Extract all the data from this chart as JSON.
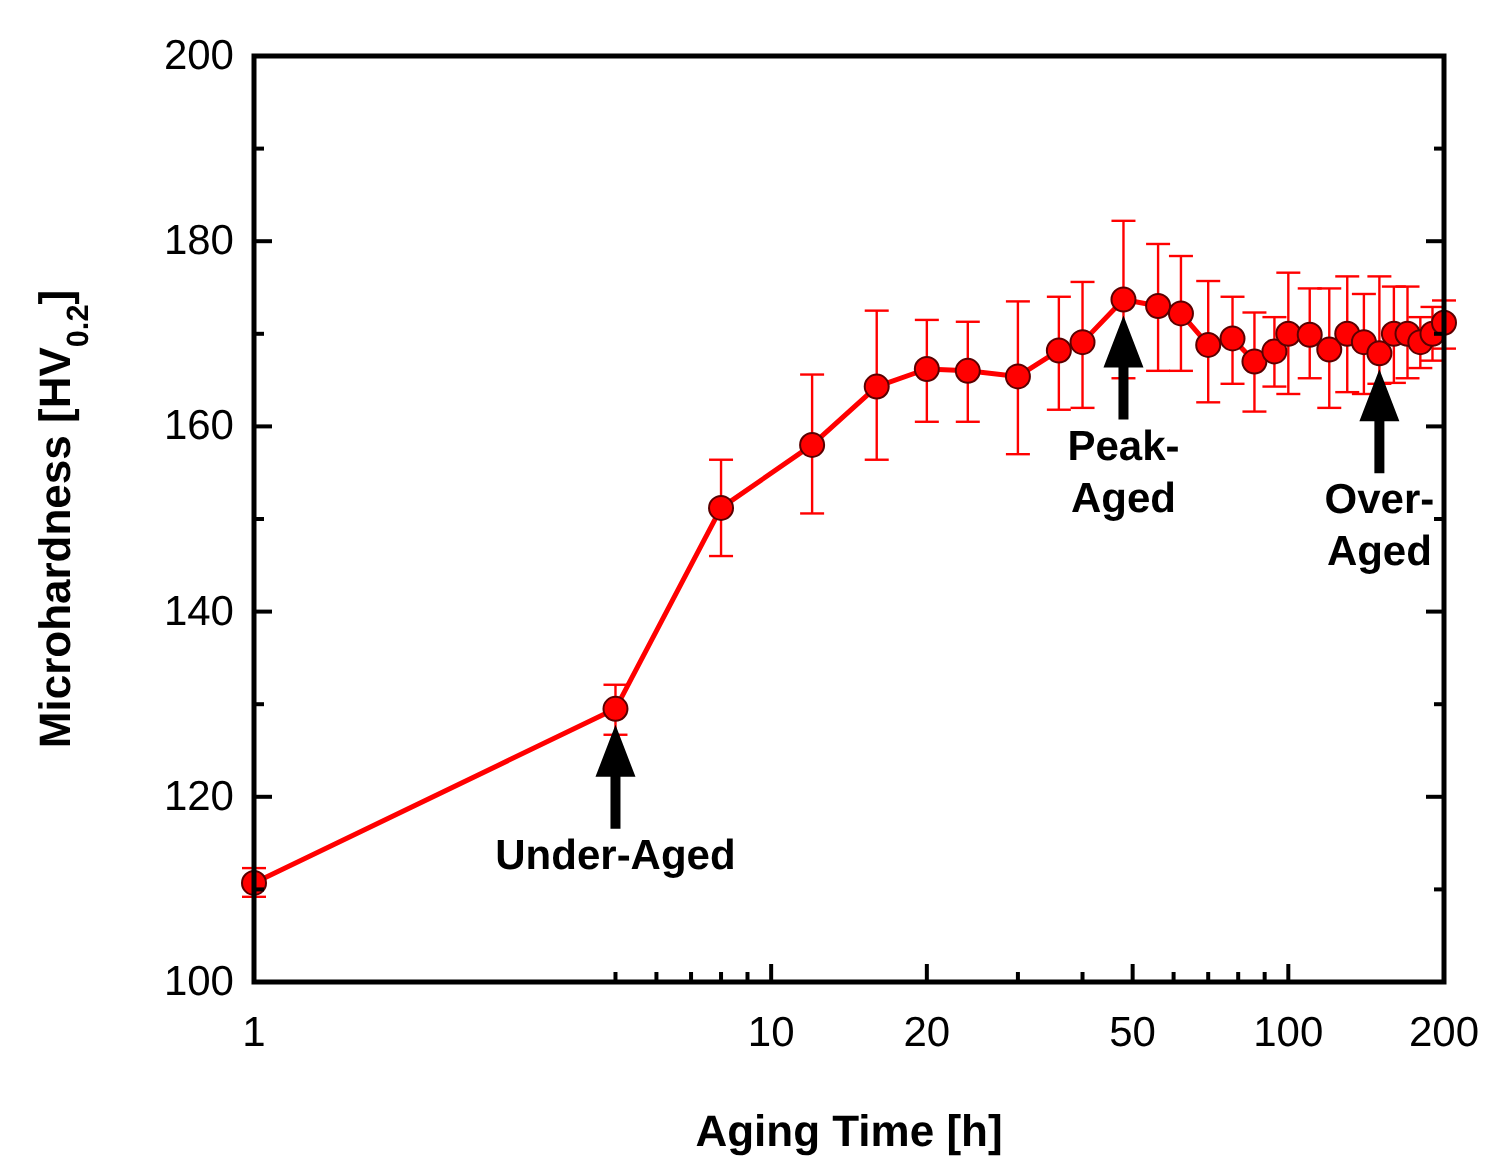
{
  "chart_data": {
    "type": "line",
    "xlabel": "Aging Time [h]",
    "ylabel": "Microhardness [HV$_{0.2}$]",
    "x": [
      1,
      5,
      8,
      12,
      16,
      20,
      24,
      30,
      36,
      40,
      48,
      56,
      62,
      70,
      78,
      86,
      94,
      100,
      110,
      120,
      130,
      140,
      150,
      160,
      170,
      180,
      190,
      200
    ],
    "series": [
      {
        "color": "#ff0000",
        "values": [
          110.7,
          129.5,
          151.2,
          158.0,
          164.3,
          166.2,
          166.0,
          165.4,
          168.2,
          169.1,
          173.7,
          173.0,
          172.2,
          168.8,
          169.5,
          167.0,
          168.1,
          170.0,
          169.9,
          168.3,
          170.0,
          169.1,
          167.9,
          170.0,
          170.0,
          169.1,
          170.0,
          171.2
        ],
        "errors": [
          [
            109.2,
            112.3
          ],
          [
            126.7,
            132.1
          ],
          [
            146,
            156.4
          ],
          [
            150.6,
            165.6
          ],
          [
            156.4,
            172.5
          ],
          [
            160.5,
            171.5
          ],
          [
            160.5,
            171.3
          ],
          [
            157.0,
            173.5
          ],
          [
            161.8,
            174.0
          ],
          [
            162.0,
            175.6
          ],
          [
            165.2,
            182.2
          ],
          [
            166,
            179.7
          ],
          [
            166,
            178.4
          ],
          [
            162.6,
            175.7
          ],
          [
            164.6,
            174
          ],
          [
            161.6,
            172.3
          ],
          [
            164.3,
            171.8
          ],
          [
            163.5,
            176.6
          ],
          [
            165.2,
            174.9
          ],
          [
            162.0,
            174.9
          ],
          [
            163.7,
            176.2
          ],
          [
            163.5,
            174.3
          ],
          [
            164.6,
            176.2
          ],
          [
            164.7,
            175.1
          ],
          [
            165.2,
            175.1
          ],
          [
            166.3,
            171.8
          ],
          [
            167.1,
            172.9
          ],
          [
            168.4,
            173.6
          ]
        ]
      }
    ],
    "log": "x",
    "xlim": [
      1,
      200
    ],
    "ylim": [
      100,
      200
    ],
    "xticks": [
      1,
      {
        "value": 5,
        "label": null
      },
      {
        "value": 6,
        "label": null
      },
      {
        "value": 7,
        "label": null
      },
      {
        "value": 8,
        "label": null
      },
      {
        "value": 9,
        "label": null
      },
      10,
      20,
      {
        "value": 30,
        "label": null
      },
      {
        "value": 40,
        "label": null
      },
      50,
      {
        "value": 60,
        "label": null
      },
      {
        "value": 70,
        "label": null
      },
      {
        "value": 80,
        "label": null
      },
      {
        "value": 90,
        "label": null
      },
      100,
      200
    ],
    "yticks": [
      100,
      {
        "value": 110,
        "label": null
      },
      120,
      {
        "value": 130,
        "label": null
      },
      140,
      {
        "value": 150,
        "label": null
      },
      160,
      {
        "value": 170,
        "label": null
      },
      180,
      {
        "value": 190,
        "label": null
      },
      200
    ],
    "grid": false,
    "marker": "circle",
    "line_style": "solid",
    "annotations": [
      {
        "text": "Under-Aged",
        "x": 5,
        "y": 129.5
      },
      {
        "text": "Peak-\nAged",
        "x": 48,
        "y": 173.7
      },
      {
        "text": "Over-\nAged",
        "x": 150,
        "y": 167.9
      }
    ]
  }
}
